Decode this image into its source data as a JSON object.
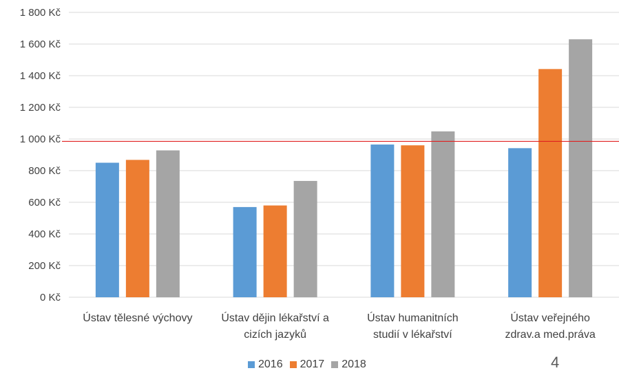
{
  "chart_data": {
    "type": "bar",
    "categories": [
      [
        "Ústav tělesné výchovy"
      ],
      [
        "Ústav dějin lékařství a",
        "cizích jazyků"
      ],
      [
        "Ústav  humanitních",
        "studií v lékařství"
      ],
      [
        "Ústav veřejného",
        "zdrav.a med.práva"
      ]
    ],
    "series": [
      {
        "name": "2016",
        "color": "#5B9BD5",
        "values": [
          850,
          570,
          965,
          942
        ]
      },
      {
        "name": "2017",
        "color": "#ED7D31",
        "values": [
          868,
          580,
          960,
          1442
        ]
      },
      {
        "name": "2018",
        "color": "#A5A5A5",
        "values": [
          928,
          735,
          1048,
          1630
        ]
      }
    ],
    "ylim": [
      0,
      1800
    ],
    "yticks": [
      {
        "value": 0,
        "label": "0 Kč"
      },
      {
        "value": 200,
        "label": "200 Kč"
      },
      {
        "value": 400,
        "label": "400 Kč"
      },
      {
        "value": 600,
        "label": "600 Kč"
      },
      {
        "value": 800,
        "label": "800 Kč"
      },
      {
        "value": 1000,
        "label": "1 000 Kč"
      },
      {
        "value": 1200,
        "label": "1 200 Kč"
      },
      {
        "value": 1400,
        "label": "1 400 Kč"
      },
      {
        "value": 1600,
        "label": "1 600 Kč"
      },
      {
        "value": 1800,
        "label": "1 800 Kč"
      }
    ],
    "reference_line": {
      "value": 985,
      "color": "#E02020"
    },
    "grid": true,
    "legend_position": "bottom"
  },
  "page_number": "4"
}
